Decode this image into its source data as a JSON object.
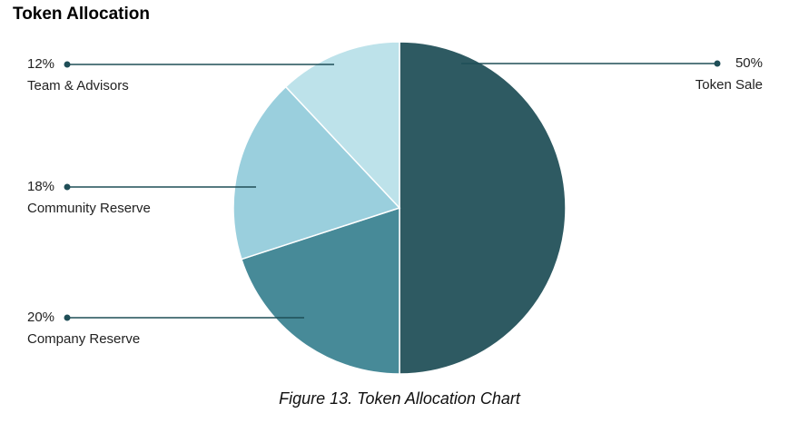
{
  "chart_data": {
    "type": "pie",
    "title": "Token Allocation",
    "caption": "Figure 13. Token Allocation Chart",
    "categories": [
      "Token Sale",
      "Company Reserve",
      "Community Reserve",
      "Team & Advisors"
    ],
    "values": [
      50,
      20,
      18,
      12
    ],
    "value_labels": [
      "50%",
      "20%",
      "18%",
      "12%"
    ],
    "colors": [
      "#2e5a62",
      "#478a98",
      "#9acfdd",
      "#bde2ea"
    ]
  }
}
